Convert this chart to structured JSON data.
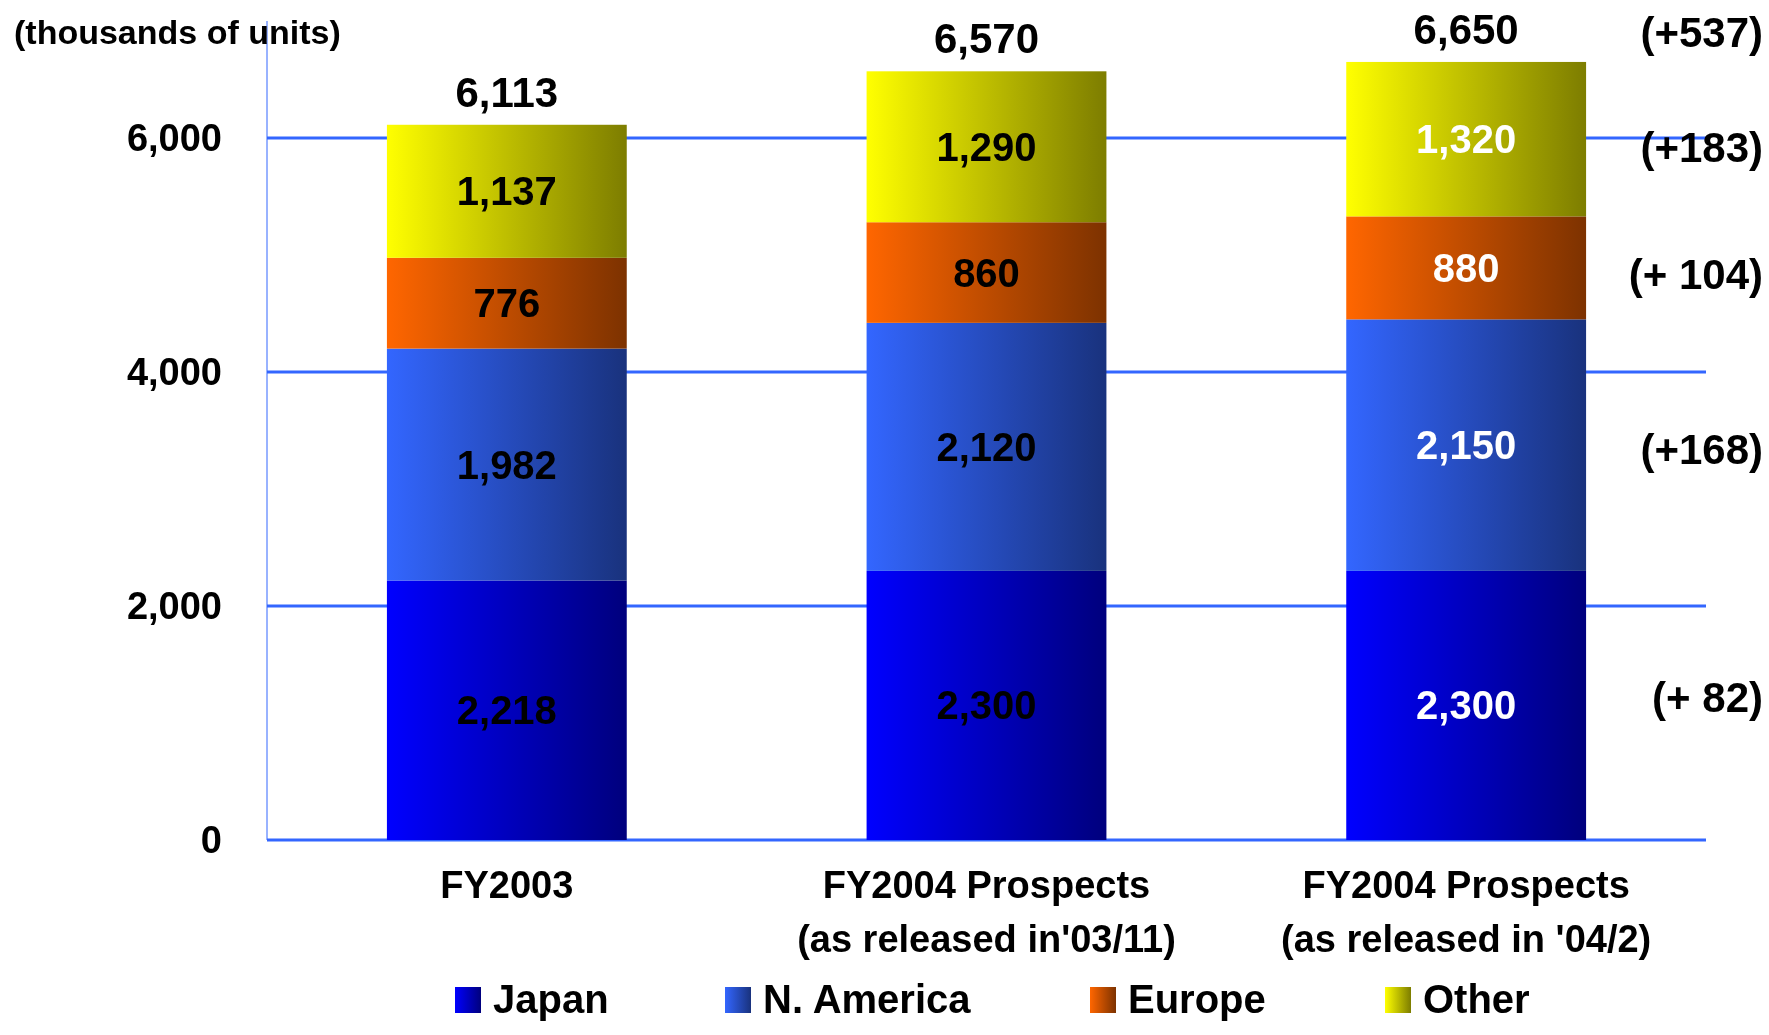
{
  "chart_data": {
    "type": "bar",
    "stacked": true,
    "ylabel": "(thousands of units)",
    "categories": [
      "FY2003",
      "FY2004 Prospects\n(as released in'03/11)",
      "FY2004 Prospects\n(as released in '04/2)"
    ],
    "series": [
      {
        "name": "Japan",
        "color": "#0000ff",
        "values": [
          2218,
          2300,
          2300
        ],
        "value_labels": [
          "2,218",
          "2,300",
          "2,300"
        ]
      },
      {
        "name": "N. America",
        "color": "#3366ff",
        "values": [
          1982,
          2120,
          2150
        ],
        "value_labels": [
          "1,982",
          "2,120",
          "2,150"
        ]
      },
      {
        "name": "Europe",
        "color": "#ff6600",
        "values": [
          776,
          860,
          880
        ],
        "value_labels": [
          "776",
          "860",
          "880"
        ]
      },
      {
        "name": "Other",
        "color": "#ffff00",
        "values": [
          1137,
          1290,
          1320
        ],
        "value_labels": [
          "1,137",
          "1,290",
          "1,320"
        ]
      }
    ],
    "totals": [
      "6,113",
      "6,570",
      "6,650"
    ],
    "ylim": [
      0,
      7000
    ],
    "yticks": [
      0,
      {
        "value": 2000,
        "label": "2,000"
      },
      {
        "value": 4000,
        "label": "4,000"
      },
      {
        "value": 6000,
        "label": "6,000"
      }
    ],
    "grid": "y",
    "legend": "bottom",
    "annotations": [
      "(+537)",
      "(+183)",
      "(+ 104)",
      "(+168)",
      "(+ 82)"
    ]
  }
}
